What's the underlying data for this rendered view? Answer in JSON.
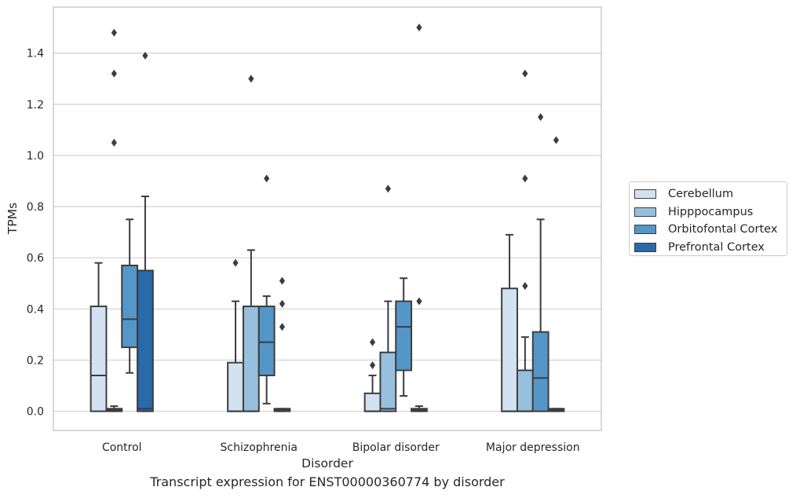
{
  "chart_data": {
    "type": "box",
    "xlabel": "Disorder",
    "ylabel": "TPMs",
    "caption": "Transcript expression for ENST00000360774 by disorder",
    "ylim": [
      -0.075,
      1.58
    ],
    "yticks": [
      0.0,
      0.2,
      0.4,
      0.6,
      0.8,
      1.0,
      1.2,
      1.4
    ],
    "ytick_labels": [
      "0.0",
      "0.2",
      "0.4",
      "0.6",
      "0.8",
      "1.0",
      "1.2",
      "1.4"
    ],
    "grid": "horizontal",
    "legend_position": "right",
    "categories": [
      "Control",
      "Schizophrenia",
      "Bipolar disorder",
      "Major depression"
    ],
    "series": [
      {
        "name": "Cerebellum",
        "color": "#d3e2f2",
        "boxes": [
          {
            "whislo": 0.0,
            "q1": 0.0,
            "med": 0.14,
            "q3": 0.41,
            "whishi": 0.58,
            "fliers": []
          },
          {
            "whislo": 0.0,
            "q1": 0.0,
            "med": 0.0,
            "q3": 0.19,
            "whishi": 0.43,
            "fliers": [
              0.58
            ]
          },
          {
            "whislo": 0.0,
            "q1": 0.0,
            "med": 0.0,
            "q3": 0.07,
            "whishi": 0.14,
            "fliers": [
              0.18,
              0.27
            ]
          },
          {
            "whislo": 0.0,
            "q1": 0.0,
            "med": 0.0,
            "q3": 0.48,
            "whishi": 0.69,
            "fliers": []
          }
        ]
      },
      {
        "name": "Hipppocampus",
        "color": "#97c0de",
        "boxes": [
          {
            "whislo": 0.0,
            "q1": 0.0,
            "med": 0.005,
            "q3": 0.01,
            "whishi": 0.02,
            "fliers": [
              1.05,
              1.32,
              1.48
            ]
          },
          {
            "whislo": 0.0,
            "q1": 0.0,
            "med": 0.0,
            "q3": 0.41,
            "whishi": 0.63,
            "fliers": [
              1.3
            ]
          },
          {
            "whislo": 0.0,
            "q1": 0.0,
            "med": 0.01,
            "q3": 0.23,
            "whishi": 0.43,
            "fliers": [
              0.87
            ]
          },
          {
            "whislo": 0.0,
            "q1": 0.0,
            "med": 0.0,
            "q3": 0.16,
            "whishi": 0.29,
            "fliers": [
              0.49,
              0.91,
              1.32
            ]
          }
        ]
      },
      {
        "name": "Orbitofontal Cortex",
        "color": "#5496c8",
        "boxes": [
          {
            "whislo": 0.15,
            "q1": 0.25,
            "med": 0.36,
            "q3": 0.57,
            "whishi": 0.75,
            "fliers": []
          },
          {
            "whislo": 0.03,
            "q1": 0.14,
            "med": 0.27,
            "q3": 0.41,
            "whishi": 0.45,
            "fliers": [
              0.91
            ]
          },
          {
            "whislo": 0.06,
            "q1": 0.16,
            "med": 0.33,
            "q3": 0.43,
            "whishi": 0.52,
            "fliers": []
          },
          {
            "whislo": 0.0,
            "q1": 0.0,
            "med": 0.13,
            "q3": 0.31,
            "whishi": 0.75,
            "fliers": [
              1.15
            ]
          }
        ]
      },
      {
        "name": "Prefrontal Cortex",
        "color": "#2a69aa",
        "boxes": [
          {
            "whislo": 0.0,
            "q1": 0.0,
            "med": 0.01,
            "q3": 0.55,
            "whishi": 0.84,
            "fliers": [
              1.39
            ]
          },
          {
            "whislo": 0.0,
            "q1": 0.0,
            "med": 0.005,
            "q3": 0.01,
            "whishi": 0.01,
            "fliers": [
              0.33,
              0.42,
              0.51
            ]
          },
          {
            "whislo": 0.0,
            "q1": 0.0,
            "med": 0.005,
            "q3": 0.01,
            "whishi": 0.02,
            "fliers": [
              0.43,
              1.5
            ]
          },
          {
            "whislo": 0.0,
            "q1": 0.0,
            "med": 0.005,
            "q3": 0.01,
            "whishi": 0.01,
            "fliers": [
              1.06
            ]
          }
        ]
      }
    ]
  }
}
